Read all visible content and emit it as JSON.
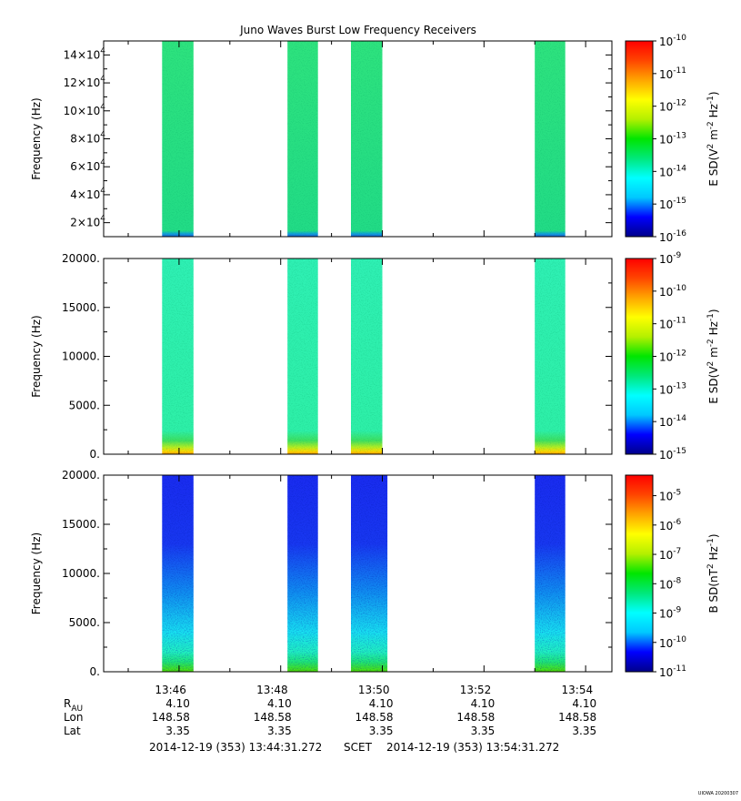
{
  "colors": {
    "spectrum": [
      "#00008b",
      "#0000ff",
      "#00c8ff",
      "#00ffff",
      "#00e87a",
      "#00e600",
      "#b4f000",
      "#ffff00",
      "#ffa500",
      "#ff4500",
      "#ff0000"
    ],
    "panel1_fill": "#2ee37e",
    "panel2_fill": "#2ff0b4",
    "panel3_top": "#1a2cf0",
    "panel3_bottom": "#1ee676"
  },
  "chart_data": [
    {
      "type": "heatmap",
      "title": "Juno Waves Burst Low Frequency Receivers",
      "ylabel": "Frequency (Hz)",
      "ylim": [
        10000,
        150000
      ],
      "yticks": [
        {
          "v": 20000,
          "m": "2×10",
          "e": "4"
        },
        {
          "v": 40000,
          "m": "4×10",
          "e": "4"
        },
        {
          "v": 60000,
          "m": "6×10",
          "e": "4"
        },
        {
          "v": 80000,
          "m": "8×10",
          "e": "4"
        },
        {
          "v": 100000,
          "m": "10×10",
          "e": "4"
        },
        {
          "v": 120000,
          "m": "12×10",
          "e": "4"
        },
        {
          "v": 140000,
          "m": "14×10",
          "e": "4"
        }
      ],
      "bursts": [
        [
          "13:45:40",
          "13:46:17"
        ],
        [
          "13:48:08",
          "13:48:44"
        ],
        [
          "13:49:23",
          "13:50:00"
        ],
        [
          "13:53:00",
          "13:53:36"
        ]
      ],
      "colorbar": {
        "label_main": "E SD(V",
        "label_sup1": "2",
        "label_mid": " m",
        "label_sup2": "-2",
        "label_mid2": " Hz",
        "label_sup3": "-1",
        "label_end": ")",
        "ticks": [
          {
            "v": -10,
            "m": "10",
            "e": "-10"
          },
          {
            "v": -11,
            "m": "10",
            "e": "-11"
          },
          {
            "v": -12,
            "m": "10",
            "e": "-12"
          },
          {
            "v": -13,
            "m": "10",
            "e": "-13"
          },
          {
            "v": -14,
            "m": "10",
            "e": "-14"
          },
          {
            "v": -15,
            "m": "10",
            "e": "-15"
          },
          {
            "v": -16,
            "m": "10",
            "e": "-16"
          }
        ],
        "range": [
          -16,
          -10
        ]
      }
    },
    {
      "type": "heatmap",
      "ylabel": "Frequency (Hz)",
      "ylim": [
        0,
        20000
      ],
      "yticks": [
        {
          "v": 0,
          "m": "0.",
          "e": ""
        },
        {
          "v": 5000,
          "m": "5000.",
          "e": ""
        },
        {
          "v": 10000,
          "m": "10000.",
          "e": ""
        },
        {
          "v": 15000,
          "m": "15000.",
          "e": ""
        },
        {
          "v": 20000,
          "m": "20000.",
          "e": ""
        }
      ],
      "bursts": [
        [
          "13:45:40",
          "13:46:17"
        ],
        [
          "13:48:08",
          "13:48:44"
        ],
        [
          "13:49:23",
          "13:50:00"
        ],
        [
          "13:53:00",
          "13:53:36"
        ]
      ],
      "colorbar": {
        "label_main": "E SD(V",
        "label_sup1": "2",
        "label_mid": " m",
        "label_sup2": "-2",
        "label_mid2": " Hz",
        "label_sup3": "-1",
        "label_end": ")",
        "ticks": [
          {
            "v": -9,
            "m": "10",
            "e": "-9"
          },
          {
            "v": -10,
            "m": "10",
            "e": "-10"
          },
          {
            "v": -11,
            "m": "10",
            "e": "-11"
          },
          {
            "v": -12,
            "m": "10",
            "e": "-12"
          },
          {
            "v": -13,
            "m": "10",
            "e": "-13"
          },
          {
            "v": -14,
            "m": "10",
            "e": "-14"
          },
          {
            "v": -15,
            "m": "10",
            "e": "-15"
          }
        ],
        "range": [
          -15,
          -9
        ]
      }
    },
    {
      "type": "heatmap",
      "ylabel": "Frequency (Hz)",
      "ylim": [
        0,
        20000
      ],
      "yticks": [
        {
          "v": 0,
          "m": "0.",
          "e": ""
        },
        {
          "v": 5000,
          "m": "5000.",
          "e": ""
        },
        {
          "v": 10000,
          "m": "10000.",
          "e": ""
        },
        {
          "v": 15000,
          "m": "15000.",
          "e": ""
        },
        {
          "v": 20000,
          "m": "20000.",
          "e": ""
        }
      ],
      "bursts": [
        [
          "13:45:40",
          "13:46:17"
        ],
        [
          "13:48:08",
          "13:48:44"
        ],
        [
          "13:49:23",
          "13:50:06"
        ],
        [
          "13:53:00",
          "13:53:36"
        ]
      ],
      "colorbar": {
        "label_main": "B SD(nT",
        "label_sup1": "2",
        "label_mid": " Hz",
        "label_sup2": "-1",
        "label_mid2": "",
        "label_sup3": "",
        "label_end": ")",
        "ticks": [
          {
            "v": -5,
            "m": "10",
            "e": "-5"
          },
          {
            "v": -6,
            "m": "10",
            "e": "-6"
          },
          {
            "v": -7,
            "m": "10",
            "e": "-7"
          },
          {
            "v": -8,
            "m": "10",
            "e": "-8"
          },
          {
            "v": -9,
            "m": "10",
            "e": "-9"
          },
          {
            "v": -10,
            "m": "10",
            "e": "-10"
          },
          {
            "v": -11,
            "m": "10",
            "e": "-11"
          }
        ],
        "range": [
          -11,
          -4.3
        ]
      }
    }
  ],
  "time_axis": {
    "start": "13:44:31",
    "end": "13:54:31",
    "ticks": [
      "13:46",
      "13:48",
      "13:50",
      "13:52",
      "13:54"
    ]
  },
  "ephemeris": [
    {
      "label": "R",
      "sub": "AU",
      "values": [
        "4.10",
        "4.10",
        "4.10",
        "4.10",
        "4.10"
      ]
    },
    {
      "label": "Lon",
      "sub": "",
      "values": [
        "148.58",
        "148.58",
        "148.58",
        "148.58",
        "148.58"
      ]
    },
    {
      "label": "Lat",
      "sub": "",
      "values": [
        "3.35",
        "3.35",
        "3.35",
        "3.35",
        "3.35"
      ]
    }
  ],
  "footer": {
    "start": "2014-12-19 (353) 13:44:31.272",
    "scet": "SCET",
    "end": "2014-12-19 (353) 13:54:31.272",
    "stamp": "UIOWA 20200307"
  }
}
